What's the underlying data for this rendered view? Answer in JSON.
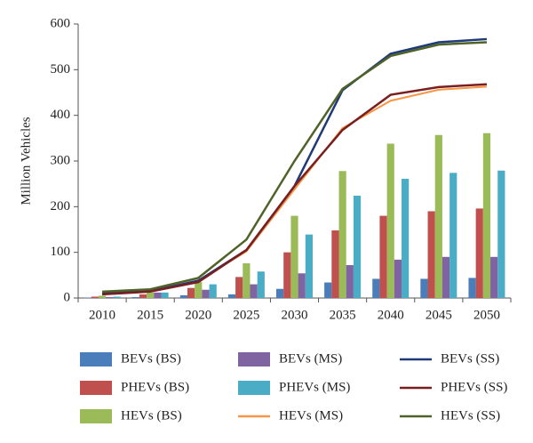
{
  "chart_data": {
    "type": "bar",
    "y_label": "Million Vehicles",
    "categories": [
      "2010",
      "2015",
      "2020",
      "2025",
      "2030",
      "2035",
      "2040",
      "2045",
      "2050"
    ],
    "ylim": [
      0,
      600
    ],
    "yticks": [
      0,
      100,
      200,
      300,
      400,
      500,
      600
    ],
    "series": [
      {
        "name": "BEVs (BS)",
        "type": "bar",
        "color": "#4a7ebb",
        "values": [
          1,
          2,
          6,
          8,
          20,
          34,
          42,
          42,
          44
        ]
      },
      {
        "name": "PHEVs (BS)",
        "type": "bar",
        "color": "#c0504d",
        "values": [
          3,
          8,
          22,
          46,
          100,
          148,
          180,
          190,
          196
        ]
      },
      {
        "name": "HEVs (BS)",
        "type": "bar",
        "color": "#9bbb59",
        "values": [
          5,
          12,
          35,
          76,
          180,
          278,
          338,
          357,
          361
        ]
      },
      {
        "name": "BEVs (MS)",
        "type": "bar",
        "color": "#8064a2",
        "values": [
          2,
          12,
          18,
          30,
          54,
          72,
          84,
          90,
          90
        ]
      },
      {
        "name": "PHEVs (MS)",
        "type": "bar",
        "color": "#4bacc6",
        "values": [
          3,
          12,
          30,
          58,
          139,
          224,
          261,
          274,
          279
        ]
      },
      {
        "name": "HEVs (MS)",
        "type": "line",
        "color": "#f79646",
        "values": [
          9,
          15,
          38,
          102,
          238,
          372,
          432,
          456,
          463
        ]
      },
      {
        "name": "BEVs (SS)",
        "type": "line",
        "color": "#1f3a78",
        "values": [
          10,
          15,
          38,
          105,
          245,
          455,
          535,
          560,
          567
        ]
      },
      {
        "name": "PHEVs (SS)",
        "type": "line",
        "color": "#7a1f1f",
        "values": [
          8,
          14,
          35,
          105,
          245,
          368,
          445,
          462,
          468
        ]
      },
      {
        "name": "HEVs (SS)",
        "type": "line",
        "color": "#4f6228",
        "values": [
          14,
          19,
          44,
          128,
          300,
          458,
          530,
          555,
          560
        ]
      }
    ]
  }
}
